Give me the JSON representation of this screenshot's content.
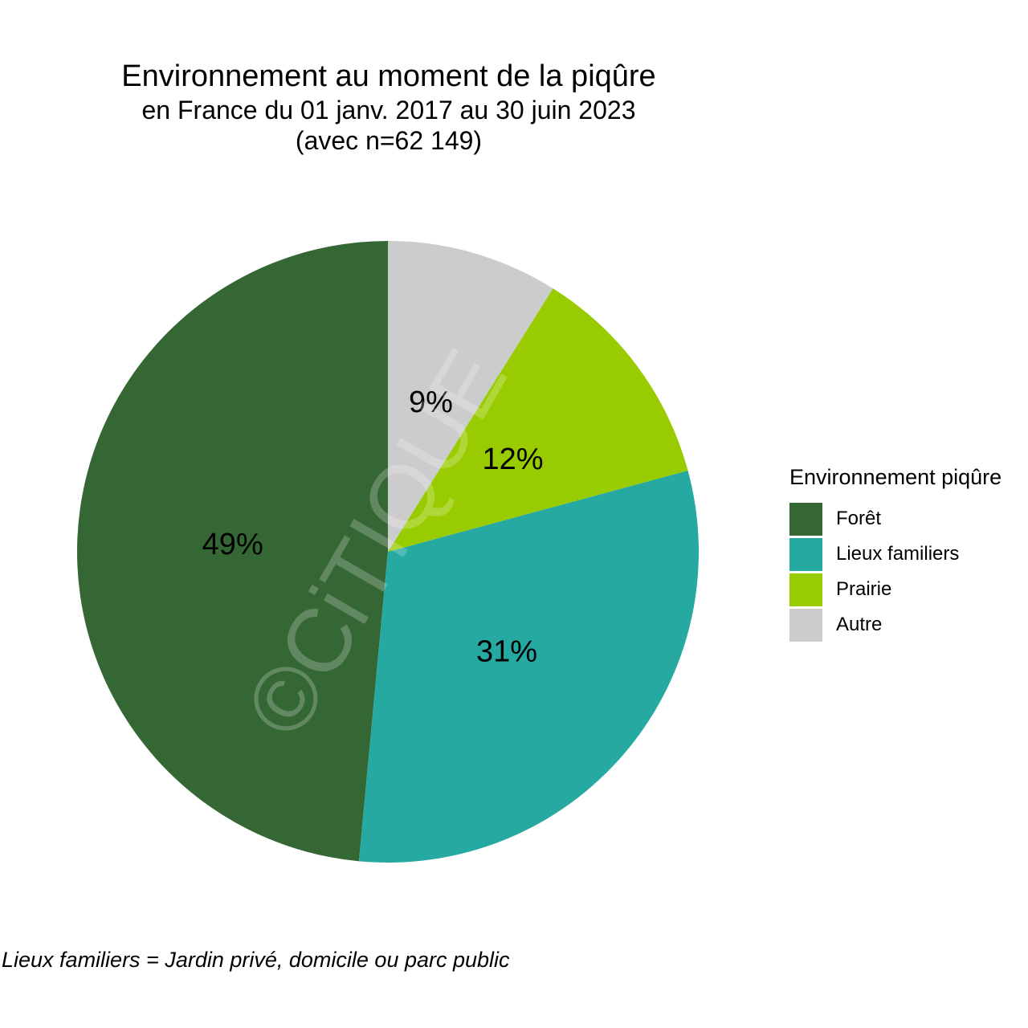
{
  "chart_data": {
    "type": "pie",
    "title": "Environnement au moment de la piqûre",
    "subtitle_line1": "en France du 01 janv. 2017 au 30 juin 2023",
    "subtitle_line2": "(avec n=62 149)",
    "start": "top",
    "direction": "counterclockwise",
    "categories": [
      "Forêt",
      "Lieux familiers",
      "Prairie",
      "Autre"
    ],
    "values": [
      49,
      31,
      12,
      9
    ],
    "value_labels": [
      "49%",
      "31%",
      "12%",
      "9%"
    ],
    "colors": [
      "#356734",
      "#26A9A1",
      "#99CC00",
      "#CCCCCC"
    ],
    "legend_title": "Environnement piqûre",
    "legend_position": "right",
    "caption": "Lieux familiers = Jardin privé, domicile ou parc public"
  },
  "watermark": "©CiTIQUE"
}
